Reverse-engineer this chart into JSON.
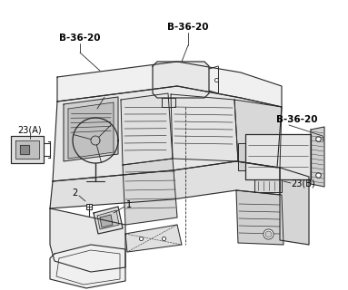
{
  "background_color": "#f5f5f5",
  "line_color": "#2a2a2a",
  "labels": {
    "b36_20_top_left": "B-36-20",
    "b36_20_top_center": "B-36-20",
    "b36_20_right": "B-36-20",
    "part_23a": "23(A)",
    "part_23b": "23(B)",
    "part_1": "1",
    "part_2": "2"
  },
  "figsize": [
    3.83,
    3.2
  ],
  "dpi": 100
}
